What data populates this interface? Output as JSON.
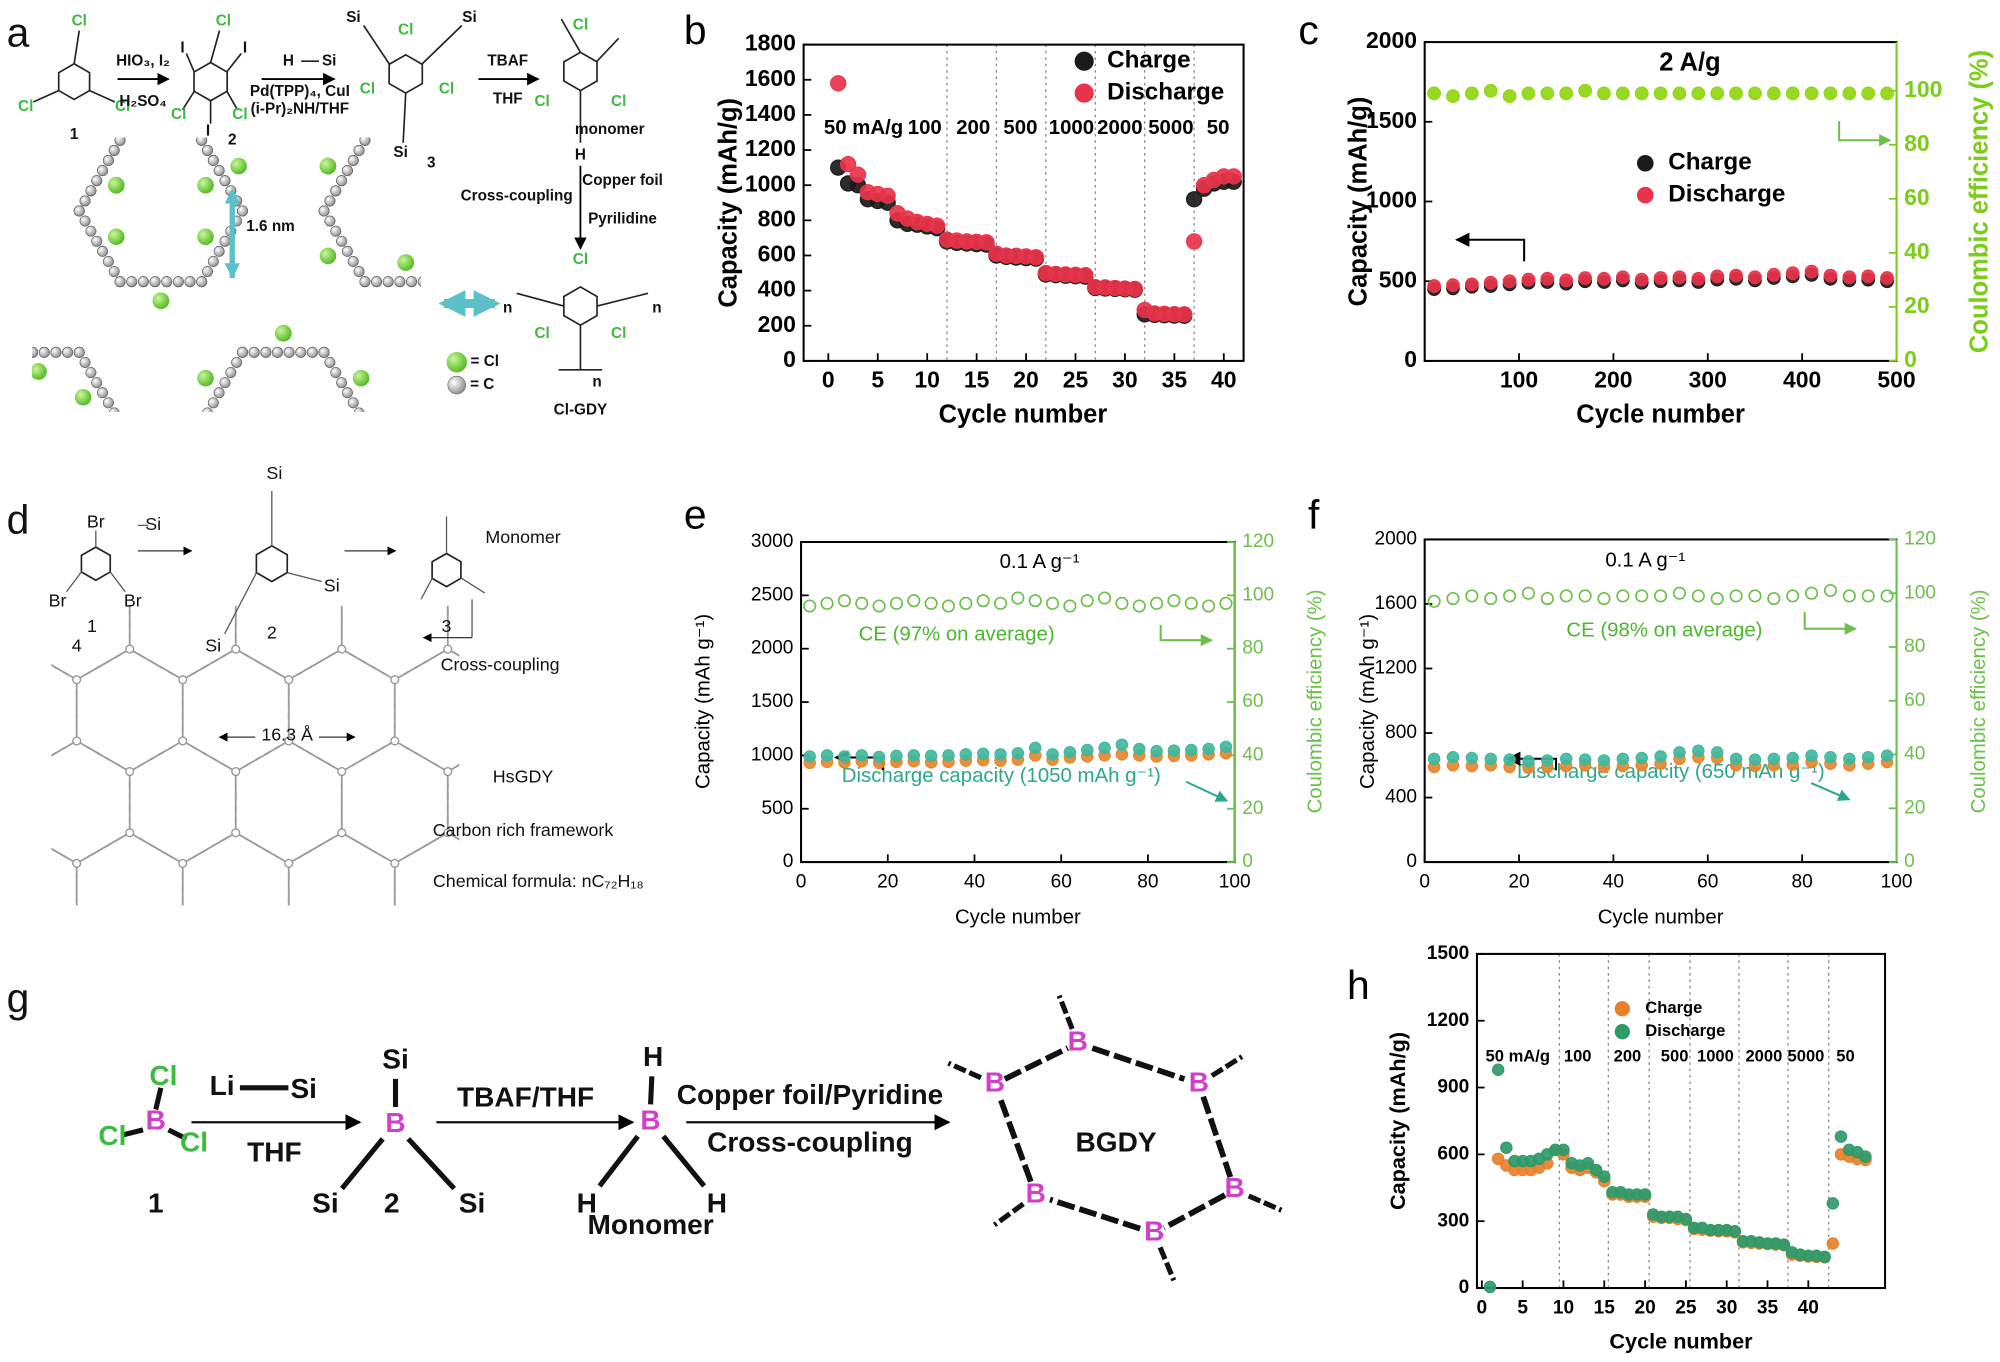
{
  "chart_data": [
    {
      "panel": "b",
      "type": "scatter",
      "xlabel": "Cycle  number",
      "ylabel": "Capacity (mAh/g)",
      "x": [
        1,
        2,
        3,
        4,
        5,
        6,
        7,
        8,
        9,
        10,
        11,
        12,
        13,
        14,
        15,
        16,
        17,
        18,
        19,
        20,
        21,
        22,
        23,
        24,
        25,
        26,
        27,
        28,
        29,
        30,
        31,
        32,
        33,
        34,
        35,
        36,
        37,
        38,
        39,
        40,
        41
      ],
      "xlim": [
        -2.5,
        42
      ],
      "xticks": [
        0,
        5,
        10,
        15,
        20,
        25,
        30,
        35,
        40
      ],
      "ylim": [
        0,
        1800
      ],
      "yticks": [
        0,
        200,
        400,
        600,
        800,
        1000,
        1200,
        1400,
        1600,
        1800
      ],
      "dividers": [
        12,
        17,
        22,
        27,
        32,
        37
      ],
      "rate_labels": [
        "50 mA/g",
        "100",
        "200",
        "500",
        "1000",
        "2000",
        "5000",
        "50"
      ],
      "series": [
        {
          "name": "Charge",
          "color": "#1a1a1a",
          "marker": "filled",
          "values": [
            1100,
            1010,
            1000,
            920,
            910,
            900,
            800,
            780,
            775,
            765,
            755,
            680,
            672,
            668,
            665,
            662,
            600,
            592,
            588,
            585,
            582,
            492,
            488,
            485,
            482,
            480,
            415,
            412,
            410,
            408,
            405,
            265,
            262,
            260,
            258,
            257,
            920,
            980,
            1010,
            1020,
            1020
          ]
        },
        {
          "name": "Discharge",
          "color": "#e8334a",
          "marker": "filled",
          "values": [
            1580,
            1120,
            1060,
            960,
            950,
            940,
            840,
            810,
            790,
            780,
            770,
            690,
            685,
            680,
            678,
            675,
            610,
            600,
            598,
            595,
            590,
            500,
            495,
            492,
            490,
            488,
            420,
            418,
            415,
            412,
            410,
            290,
            270,
            268,
            266,
            265,
            680,
            1000,
            1030,
            1050,
            1050
          ]
        }
      ]
    },
    {
      "panel": "c",
      "type": "scatter",
      "xlabel": "Cycle  number",
      "ylabel": "Capacity (mAh/g)",
      "y2label": "Coulombic efficiency (%)",
      "y2color": "#7ccc1a",
      "x": [
        10,
        30,
        50,
        70,
        90,
        110,
        130,
        150,
        170,
        190,
        210,
        230,
        250,
        270,
        290,
        310,
        330,
        350,
        370,
        390,
        410,
        430,
        450,
        470,
        490
      ],
      "xlim": [
        0,
        500
      ],
      "xticks": [
        100,
        200,
        300,
        400,
        500
      ],
      "ylim": [
        0,
        2000
      ],
      "yticks": [
        0,
        500,
        1000,
        1500,
        2000
      ],
      "y2lim": [
        0,
        118
      ],
      "y2ticks": [
        0,
        20,
        40,
        60,
        80,
        100
      ],
      "annotations": [
        {
          "text": "2 A/g",
          "color": "#000000"
        }
      ],
      "series": [
        {
          "color": "#8fd610",
          "marker": "filled",
          "axis": "y2",
          "values": [
            99,
            98,
            99,
            100,
            98,
            99,
            99,
            99,
            100,
            99,
            99,
            99,
            99,
            99,
            99,
            99,
            99,
            99,
            99,
            99,
            99,
            99,
            99,
            99,
            99
          ]
        },
        {
          "name": "Charge",
          "color": "#1a1a1a",
          "marker": "filled",
          "values": [
            450,
            455,
            465,
            470,
            480,
            490,
            495,
            485,
            500,
            495,
            505,
            490,
            500,
            505,
            495,
            510,
            515,
            505,
            520,
            530,
            540,
            515,
            505,
            510,
            500
          ]
        },
        {
          "name": "Discharge",
          "color": "#e8334a",
          "marker": "filled",
          "values": [
            470,
            475,
            480,
            490,
            500,
            510,
            515,
            505,
            520,
            515,
            525,
            510,
            520,
            525,
            515,
            530,
            535,
            525,
            540,
            550,
            560,
            535,
            525,
            530,
            520
          ]
        }
      ]
    },
    {
      "panel": "e",
      "type": "scatter",
      "xlabel": "Cycle number",
      "ylabel": "Capacity (mAh g⁻¹)",
      "y2label": "Coulombic efficiency (%)",
      "y2color": "#6cc04a",
      "x": [
        2,
        6,
        10,
        14,
        18,
        22,
        26,
        30,
        34,
        38,
        42,
        46,
        50,
        54,
        58,
        62,
        66,
        70,
        74,
        78,
        82,
        86,
        90,
        94,
        98
      ],
      "xlim": [
        0,
        100
      ],
      "xticks": [
        0,
        20,
        40,
        60,
        80,
        100
      ],
      "ylim": [
        0,
        3000
      ],
      "yticks": [
        0,
        500,
        1000,
        1500,
        2000,
        2500,
        3000
      ],
      "y2lim": [
        0,
        120
      ],
      "y2ticks": [
        0,
        20,
        40,
        60,
        80,
        100,
        120
      ],
      "annotations": [
        {
          "text": "0.1 A g⁻¹",
          "color": "#000000"
        },
        {
          "text": "CE (97% on average)",
          "color": "#4cb82e"
        },
        {
          "text": "Discharge capacity (1050 mAh g⁻¹)",
          "color": "#2aa88e"
        }
      ],
      "series": [
        {
          "color": "#6cc04a",
          "marker": "open",
          "axis": "y2",
          "values": [
            96,
            97,
            98,
            97,
            96,
            97,
            98,
            97,
            96,
            97,
            98,
            97,
            99,
            98,
            97,
            96,
            98,
            99,
            97,
            96,
            97,
            98,
            97,
            96,
            97
          ]
        },
        {
          "color": "#e8862a",
          "marker": "filled",
          "values": [
            930,
            940,
            935,
            945,
            930,
            940,
            945,
            935,
            940,
            950,
            955,
            950,
            960,
            1000,
            960,
            980,
            990,
            1000,
            1010,
            1000,
            990,
            995,
            1000,
            1010,
            1020
          ]
        },
        {
          "color": "#3fb8a0",
          "marker": "filled",
          "values": [
            990,
            1000,
            990,
            1000,
            985,
            995,
            1000,
            995,
            1000,
            1010,
            1015,
            1010,
            1020,
            1070,
            1010,
            1030,
            1050,
            1070,
            1100,
            1060,
            1040,
            1045,
            1050,
            1060,
            1080
          ]
        }
      ]
    },
    {
      "panel": "f",
      "type": "scatter",
      "xlabel": "Cycle number",
      "ylabel": "Capacity (mAh g⁻¹)",
      "y2label": "Coulombic efficiency (%)",
      "y2color": "#6cc04a",
      "x": [
        2,
        6,
        10,
        14,
        18,
        22,
        26,
        30,
        34,
        38,
        42,
        46,
        50,
        54,
        58,
        62,
        66,
        70,
        74,
        78,
        82,
        86,
        90,
        94,
        98
      ],
      "xlim": [
        0,
        100
      ],
      "xticks": [
        0,
        20,
        40,
        60,
        80,
        100
      ],
      "ylim": [
        0,
        2000
      ],
      "yticks": [
        0,
        400,
        800,
        1200,
        1600,
        2000
      ],
      "y2lim": [
        0,
        120
      ],
      "y2ticks": [
        0,
        20,
        40,
        60,
        80,
        100,
        120
      ],
      "annotations": [
        {
          "text": "0.1 A g⁻¹",
          "color": "#000000"
        },
        {
          "text": "CE (98% on average)",
          "color": "#4cb82e"
        },
        {
          "text": "Discharge capacity (650 mAh g⁻¹)",
          "color": "#2aa88e"
        }
      ],
      "series": [
        {
          "color": "#6cc04a",
          "marker": "open",
          "axis": "y2",
          "values": [
            97,
            98,
            99,
            98,
            99,
            100,
            98,
            99,
            99,
            98,
            99,
            99,
            99,
            100,
            99,
            98,
            99,
            99,
            98,
            99,
            100,
            101,
            99,
            99,
            99
          ]
        },
        {
          "color": "#e8862a",
          "marker": "filled",
          "values": [
            590,
            600,
            595,
            600,
            590,
            585,
            590,
            595,
            600,
            590,
            595,
            600,
            610,
            640,
            650,
            645,
            600,
            595,
            600,
            605,
            620,
            610,
            600,
            610,
            620
          ]
        },
        {
          "color": "#3fb8a0",
          "marker": "filled",
          "values": [
            640,
            650,
            645,
            640,
            635,
            625,
            630,
            640,
            635,
            630,
            640,
            645,
            655,
            680,
            690,
            680,
            640,
            635,
            640,
            645,
            660,
            650,
            640,
            650,
            660
          ]
        }
      ]
    },
    {
      "panel": "h",
      "type": "scatter",
      "xlabel": "Cycle  number",
      "ylabel": "Capacity (mAh/g)",
      "x": [
        1,
        2,
        3,
        4,
        5,
        6,
        7,
        8,
        9,
        10,
        11,
        12,
        13,
        14,
        15,
        16,
        17,
        18,
        19,
        20,
        21,
        22,
        23,
        24,
        25,
        26,
        27,
        28,
        29,
        30,
        31,
        32,
        33,
        34,
        35,
        36,
        37,
        38,
        39,
        40,
        41,
        42,
        43,
        44,
        45,
        46,
        47
      ],
      "xlim": [
        -0.6,
        49.4
      ],
      "xticks": [
        0,
        5,
        10,
        15,
        20,
        25,
        30,
        35,
        40
      ],
      "ylim": [
        0,
        1500
      ],
      "yticks": [
        0,
        300,
        600,
        900,
        1200,
        1500
      ],
      "dividers": [
        9.5,
        15.5,
        20.5,
        25.5,
        31.5,
        37.5,
        42.5
      ],
      "rate_labels": [
        "50 mA/g",
        "100",
        "200",
        "500",
        "1000",
        "2000",
        "5000",
        "50"
      ],
      "series": [
        {
          "name": "Charge",
          "color": "#e8802a",
          "marker": "filled",
          "values": [
            null,
            580,
            550,
            530,
            530,
            530,
            540,
            560,
            620,
            600,
            540,
            530,
            540,
            520,
            480,
            420,
            420,
            410,
            410,
            410,
            320,
            315,
            315,
            310,
            305,
            265,
            262,
            258,
            255,
            255,
            250,
            205,
            203,
            200,
            198,
            195,
            192,
            150,
            145,
            142,
            140,
            138,
            200,
            600,
            590,
            580,
            575
          ]
        },
        {
          "name": "Discharge",
          "color": "#2e9a6a",
          "marker": "filled",
          "values": [
            5,
            980,
            630,
            570,
            570,
            570,
            580,
            600,
            620,
            620,
            560,
            550,
            560,
            530,
            500,
            430,
            430,
            420,
            420,
            420,
            330,
            320,
            320,
            320,
            310,
            270,
            270,
            260,
            260,
            260,
            255,
            210,
            210,
            205,
            200,
            200,
            195,
            160,
            150,
            145,
            145,
            140,
            380,
            680,
            620,
            610,
            590
          ]
        }
      ]
    }
  ],
  "schemes": [
    {
      "panel": "a",
      "labels": [
        "a",
        "Cl",
        "Cl",
        "Cl",
        "1",
        "HIO₃, I₂",
        "H₂SO₄",
        "I",
        "Cl",
        "I",
        "Cl",
        "Cl",
        "I",
        "2",
        "H",
        "Si",
        "Pd(TPP)₄, CuI",
        "(i-Pr)₂NH/THF",
        "Si",
        "Si",
        "Cl",
        "Cl",
        "Cl",
        "Si",
        "3",
        "TBAF",
        "THF",
        "Cl",
        "Cl",
        "Cl",
        "H",
        "monomer",
        "Copper foil",
        "Cross-coupling",
        "Pyrilidine",
        "Cl",
        "Cl",
        "Cl",
        "n",
        "n",
        "n",
        "Cl-GDY",
        "1.6 nm",
        "= Cl",
        "= C"
      ]
    },
    {
      "panel": "d",
      "labels": [
        "d",
        "Br",
        "Br",
        "Br",
        "1",
        "Si",
        "Si",
        "Si",
        "Si",
        "2",
        "3",
        "Monomer",
        "Cross-coupling",
        "4",
        "16.3 Å",
        "HsGDY",
        "Carbon rich framework",
        "Chemical formula: nC₇₂H₁₈"
      ]
    },
    {
      "panel": "g",
      "labels": [
        "g",
        "Cl",
        "B",
        "Cl",
        "Cl",
        "1",
        "Li",
        "Si",
        "THF",
        "Si",
        "B",
        "Si",
        "Si",
        "2",
        "TBAF/THF",
        "H",
        "B",
        "H",
        "H",
        "Monomer",
        "Copper foil/Pyridine",
        "Cross-coupling",
        "B",
        "B",
        "B",
        "B",
        "B",
        "B",
        "BGDY"
      ]
    }
  ]
}
